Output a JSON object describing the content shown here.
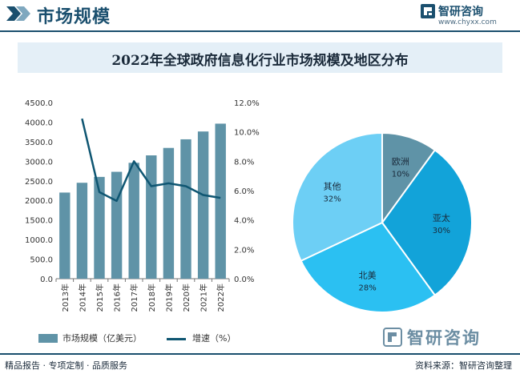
{
  "header": {
    "section_title": "市场规模",
    "brand_name": "智研咨询",
    "brand_url": "www.chyxx.com"
  },
  "chart_title": "2022年全球政府信息化行业市场规模及地区分布",
  "chart_data": [
    {
      "type": "bar",
      "categories": [
        "2013年",
        "2014年",
        "2015年",
        "2016年",
        "2017年",
        "2018年",
        "2019年",
        "2020年",
        "2021年",
        "2022年"
      ],
      "series": [
        {
          "name": "市场规模（亿美元）",
          "type": "bar",
          "axis": "left",
          "values": [
            2200,
            2450,
            2600,
            2730,
            2960,
            3150,
            3340,
            3560,
            3760,
            3960
          ]
        },
        {
          "name": "增速（%）",
          "type": "line",
          "axis": "right",
          "values": [
            null,
            10.9,
            5.9,
            5.3,
            8.0,
            6.3,
            6.5,
            6.3,
            5.7,
            5.5
          ]
        }
      ],
      "y_left": {
        "ylim": [
          0,
          4500
        ],
        "ticks": [
          "0.0",
          "500.0",
          "1000.0",
          "1500.0",
          "2000.0",
          "2500.0",
          "3000.0",
          "3500.0",
          "4000.0",
          "4500.0"
        ]
      },
      "y_right": {
        "ylim": [
          0,
          12
        ],
        "ticks": [
          "0.0%",
          "2.0%",
          "4.0%",
          "6.0%",
          "8.0%",
          "10.0%",
          "12.0%"
        ]
      },
      "colors": {
        "bar": "#5f93a7",
        "line": "#0f5672"
      },
      "legend_position": "bottom"
    },
    {
      "type": "pie",
      "slices": [
        {
          "label": "欧洲",
          "value": 10,
          "value_label": "10%",
          "color": "#5f93a7"
        },
        {
          "label": "亚太",
          "value": 30,
          "value_label": "30%",
          "color": "#12a3d9"
        },
        {
          "label": "北美",
          "value": 28,
          "value_label": "28%",
          "color": "#2bc0f2"
        },
        {
          "label": "其他",
          "value": 32,
          "value_label": "32%",
          "color": "#6dcff5"
        }
      ]
    }
  ],
  "legend": {
    "bar_label": "市场规模（亿美元）",
    "line_label": "增速（%）"
  },
  "footer": {
    "left_text": "精品报告 · 专项定制 · 品质服务",
    "right_text": "资料来源：智研咨询整理",
    "watermark_brand": "智研咨询"
  }
}
